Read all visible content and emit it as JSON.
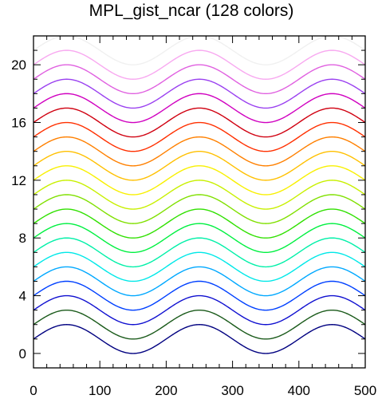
{
  "chart_data": {
    "type": "line",
    "title": "MPL_gist_ncar (128 colors)",
    "xlabel": "",
    "ylabel": "",
    "xlim": [
      0,
      500
    ],
    "ylim": [
      -1,
      22
    ],
    "x_ticks": [
      0,
      100,
      200,
      300,
      400,
      500
    ],
    "y_ticks": [
      0,
      4,
      8,
      12,
      16,
      20
    ],
    "x_minor_step": 20,
    "y_minor_step": 1,
    "grid": false,
    "legend": "none",
    "curve": "y = offset + cos(2*pi*(x - 50)/200), x from 0 to 500",
    "series": [
      {
        "offset": 1,
        "color": "#000080"
      },
      {
        "offset": 2,
        "color": "#1a5a1a"
      },
      {
        "offset": 3,
        "color": "#1010d0"
      },
      {
        "offset": 4,
        "color": "#0040ff"
      },
      {
        "offset": 5,
        "color": "#00a8ff"
      },
      {
        "offset": 6,
        "color": "#00e8e8"
      },
      {
        "offset": 7,
        "color": "#00f0a8"
      },
      {
        "offset": 8,
        "color": "#00f040"
      },
      {
        "offset": 9,
        "color": "#30e000"
      },
      {
        "offset": 10,
        "color": "#80e000"
      },
      {
        "offset": 11,
        "color": "#c8f000"
      },
      {
        "offset": 12,
        "color": "#f8f000"
      },
      {
        "offset": 13,
        "color": "#ffc000"
      },
      {
        "offset": 14,
        "color": "#ff8000"
      },
      {
        "offset": 15,
        "color": "#ff3000"
      },
      {
        "offset": 16,
        "color": "#d00010"
      },
      {
        "offset": 17,
        "color": "#d000c0"
      },
      {
        "offset": 18,
        "color": "#9a40f0"
      },
      {
        "offset": 19,
        "color": "#e060e0"
      },
      {
        "offset": 20,
        "color": "#f8a8f0"
      },
      {
        "offset": 21,
        "color": "#f0f0f0"
      }
    ]
  }
}
